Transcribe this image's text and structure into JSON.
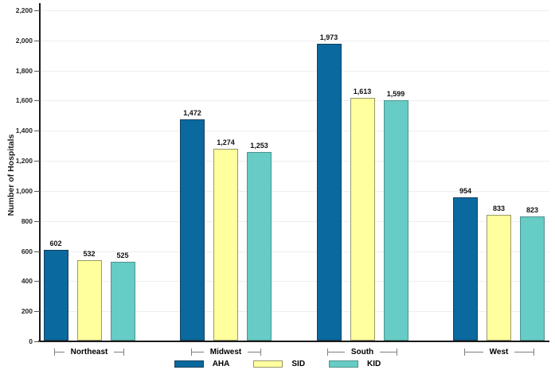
{
  "chart_data": {
    "type": "bar",
    "title": "",
    "xlabel": "",
    "ylabel": "Number of Hospitals",
    "categories": [
      "Northeast",
      "Midwest",
      "South",
      "West"
    ],
    "series": [
      {
        "name": "AHA",
        "color": "#0a699e",
        "border_color": "#16415f",
        "values": [
          602,
          1472,
          1973,
          954
        ]
      },
      {
        "name": "SID",
        "color": "#ffff9e",
        "border_color": "#99996b",
        "values": [
          532,
          1274,
          1613,
          833
        ]
      },
      {
        "name": "KID",
        "color": "#66ccc5",
        "border_color": "#4e938e",
        "values": [
          525,
          1253,
          1599,
          823
        ]
      }
    ],
    "ylim": [
      0,
      2200
    ],
    "ytick_step": 200,
    "ytick_labels": [
      "0",
      "200",
      "400",
      "600",
      "800",
      "1,000",
      "1,200",
      "1,400",
      "1,600",
      "1,800",
      "2,000",
      "2,200"
    ],
    "grid": true,
    "legend_position": "bottom",
    "bar_value_labels": [
      "602",
      "532",
      "525",
      "1,472",
      "1,274",
      "1,253",
      "1,973",
      "1,613",
      "1,599",
      "954",
      "833",
      "823"
    ],
    "colors": {
      "axis": "#1a1a1a",
      "gridline": "#eeeeee",
      "category_bracket": "#7f7f7f",
      "background": "#ffffff"
    }
  }
}
